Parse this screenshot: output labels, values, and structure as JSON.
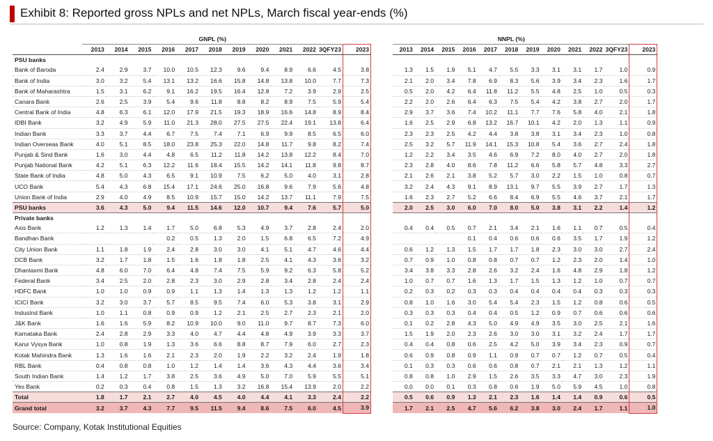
{
  "title": "Exhibit 8: Reported gross NPLs and net NPLs, March fiscal year-ends (%)",
  "source": "Source: Company, Kotak Institutional Equities",
  "headers": {
    "gnpl": "GNPL (%)",
    "nnpl": "NNPL (%)",
    "years": [
      "2013",
      "2014",
      "2015",
      "2016",
      "2017",
      "2018",
      "2019",
      "2020",
      "2021",
      "2022",
      "3QFY23",
      "2023"
    ]
  },
  "colors": {
    "accent": "#c00000",
    "highlight_border": "#d43c3c",
    "subtotal_bg": "#f7dcdc",
    "grand_bg": "#f0b7b7"
  },
  "sections": [
    {
      "label": "PSU banks",
      "rows": [
        {
          "name": "Bank of Baroda",
          "gnpl": [
            "2.4",
            "2.9",
            "3.7",
            "10.0",
            "10.5",
            "12.3",
            "9.6",
            "9.4",
            "8.9",
            "6.6",
            "4.5",
            "3.8"
          ],
          "nnpl": [
            "1.3",
            "1.5",
            "1.9",
            "5.1",
            "4.7",
            "5.5",
            "3.3",
            "3.1",
            "3.1",
            "1.7",
            "1.0",
            "0.9"
          ]
        },
        {
          "name": "Bank of India",
          "gnpl": [
            "3.0",
            "3.2",
            "5.4",
            "13.1",
            "13.2",
            "16.6",
            "15.8",
            "14.8",
            "13.8",
            "10.0",
            "7.7",
            "7.3"
          ],
          "nnpl": [
            "2.1",
            "2.0",
            "3.4",
            "7.8",
            "6.9",
            "8.3",
            "5.6",
            "3.9",
            "3.4",
            "2.3",
            "1.6",
            "1.7"
          ]
        },
        {
          "name": "Bank of Maharashtra",
          "gnpl": [
            "1.5",
            "3.1",
            "6.2",
            "9.1",
            "16.2",
            "19.5",
            "16.4",
            "12.8",
            "7.2",
            "3.9",
            "2.9",
            "2.5"
          ],
          "nnpl": [
            "0.5",
            "2.0",
            "4.2",
            "6.4",
            "11.8",
            "11.2",
            "5.5",
            "4.8",
            "2.5",
            "1.0",
            "0.5",
            "0.3"
          ]
        },
        {
          "name": "Canara Bank",
          "gnpl": [
            "2.6",
            "2.5",
            "3.9",
            "5.4",
            "9.6",
            "11.8",
            "8.8",
            "8.2",
            "8.9",
            "7.5",
            "5.9",
            "5.4"
          ],
          "nnpl": [
            "2.2",
            "2.0",
            "2.6",
            "6.4",
            "6.3",
            "7.5",
            "5.4",
            "4.2",
            "3.8",
            "2.7",
            "2.0",
            "1.7"
          ]
        },
        {
          "name": "Central Bank of India",
          "gnpl": [
            "4.8",
            "6.3",
            "6.1",
            "12.0",
            "17.9",
            "21.5",
            "19.3",
            "18.9",
            "16.6",
            "14.8",
            "8.9",
            "8.4"
          ],
          "nnpl": [
            "2.9",
            "3.7",
            "3.6",
            "7.4",
            "10.2",
            "11.1",
            "7.7",
            "7.6",
            "5.8",
            "4.0",
            "2.1",
            "1.8"
          ]
        },
        {
          "name": "IDBI Bank",
          "gnpl": [
            "3.2",
            "4.9",
            "5.9",
            "11.0",
            "21.3",
            "28.0",
            "27.5",
            "27.5",
            "22.4",
            "19.1",
            "13.8",
            "6.4"
          ],
          "nnpl": [
            "1.6",
            "2.5",
            "2.9",
            "6.8",
            "13.2",
            "16.7",
            "10.1",
            "4.2",
            "2.0",
            "1.3",
            "1.1",
            "0.9"
          ]
        },
        {
          "name": "Indian Bank",
          "gnpl": [
            "3.3",
            "3.7",
            "4.4",
            "6.7",
            "7.5",
            "7.4",
            "7.1",
            "6.9",
            "9.9",
            "8.5",
            "6.5",
            "6.0"
          ],
          "nnpl": [
            "2.3",
            "2.3",
            "2.5",
            "4.2",
            "4.4",
            "3.8",
            "3.8",
            "3.1",
            "3.4",
            "2.3",
            "1.0",
            "0.8"
          ]
        },
        {
          "name": "Indian Overseas Bank",
          "gnpl": [
            "4.0",
            "5.1",
            "8.5",
            "18.0",
            "23.8",
            "25.3",
            "22.0",
            "14.8",
            "11.7",
            "9.8",
            "8.2",
            "7.4"
          ],
          "nnpl": [
            "2.5",
            "3.2",
            "5.7",
            "11.9",
            "14.1",
            "15.3",
            "10.8",
            "5.4",
            "3.6",
            "2.7",
            "2.4",
            "1.8"
          ]
        },
        {
          "name": "Punjab & Sind Bank",
          "gnpl": [
            "1.6",
            "3.0",
            "4.4",
            "4.8",
            "6.5",
            "11.2",
            "11.8",
            "14.2",
            "13.8",
            "12.2",
            "8.4",
            "7.0"
          ],
          "nnpl": [
            "1.2",
            "2.2",
            "3.4",
            "3.5",
            "4.6",
            "6.9",
            "7.2",
            "8.0",
            "4.0",
            "2.7",
            "2.0",
            "1.8"
          ]
        },
        {
          "name": "Punjab National Bank",
          "gnpl": [
            "4.2",
            "5.1",
            "6.3",
            "12.2",
            "11.6",
            "18.4",
            "15.5",
            "14.2",
            "14.1",
            "11.8",
            "9.8",
            "8.7"
          ],
          "nnpl": [
            "2.3",
            "2.8",
            "4.0",
            "8.6",
            "7.8",
            "11.2",
            "6.6",
            "5.8",
            "5.7",
            "4.8",
            "3.3",
            "2.7"
          ]
        },
        {
          "name": "State Bank of India",
          "gnpl": [
            "4.8",
            "5.0",
            "4.3",
            "6.5",
            "9.1",
            "10.9",
            "7.5",
            "6.2",
            "5.0",
            "4.0",
            "3.1",
            "2.8"
          ],
          "nnpl": [
            "2.1",
            "2.6",
            "2.1",
            "3.8",
            "5.2",
            "5.7",
            "3.0",
            "2.2",
            "1.5",
            "1.0",
            "0.8",
            "0.7"
          ]
        },
        {
          "name": "UCO Bank",
          "gnpl": [
            "5.4",
            "4.3",
            "6.8",
            "15.4",
            "17.1",
            "24.6",
            "25.0",
            "16.8",
            "9.6",
            "7.9",
            "5.6",
            "4.8"
          ],
          "nnpl": [
            "3.2",
            "2.4",
            "4.3",
            "9.1",
            "8.9",
            "13.1",
            "9.7",
            "5.5",
            "3.9",
            "2.7",
            "1.7",
            "1.3"
          ]
        },
        {
          "name": "Union Bank of India",
          "gnpl": [
            "2.9",
            "4.0",
            "4.9",
            "8.5",
            "10.9",
            "15.7",
            "15.0",
            "14.2",
            "13.7",
            "11.1",
            "7.9",
            "7.5"
          ],
          "nnpl": [
            "1.6",
            "2.3",
            "2.7",
            "5.2",
            "6.6",
            "8.4",
            "6.9",
            "5.5",
            "4.6",
            "3.7",
            "2.1",
            "1.7"
          ]
        }
      ],
      "subtotal": {
        "name": "PSU banks",
        "gnpl": [
          "3.6",
          "4.3",
          "5.0",
          "9.4",
          "11.5",
          "14.6",
          "12.0",
          "10.7",
          "9.4",
          "7.6",
          "5.7",
          "5.0"
        ],
        "nnpl": [
          "2.0",
          "2.5",
          "3.0",
          "6.0",
          "7.0",
          "8.0",
          "5.0",
          "3.8",
          "3.1",
          "2.2",
          "1.4",
          "1.2"
        ]
      }
    },
    {
      "label": "Private banks",
      "rows": [
        {
          "name": "Axis Bank",
          "gnpl": [
            "1.2",
            "1.3",
            "1.4",
            "1.7",
            "5.0",
            "6.8",
            "5.3",
            "4.9",
            "3.7",
            "2.8",
            "2.4",
            "2.0"
          ],
          "nnpl": [
            "0.4",
            "0.4",
            "0.5",
            "0.7",
            "2.1",
            "3.4",
            "2.1",
            "1.6",
            "1.1",
            "0.7",
            "0.5",
            "0.4"
          ]
        },
        {
          "name": "Bandhan Bank",
          "gnpl": [
            "",
            "",
            "",
            "0.2",
            "0.5",
            "1.3",
            "2.0",
            "1.5",
            "6.8",
            "6.5",
            "7.2",
            "4.9"
          ],
          "nnpl": [
            "",
            "",
            "",
            "0.1",
            "0.4",
            "0.6",
            "0.6",
            "0.6",
            "3.5",
            "1.7",
            "1.9",
            "1.2"
          ]
        },
        {
          "name": "City Union Bank",
          "gnpl": [
            "1.1",
            "1.8",
            "1.9",
            "2.4",
            "2.8",
            "3.0",
            "3.0",
            "4.1",
            "5.1",
            "4.7",
            "4.6",
            "4.4"
          ],
          "nnpl": [
            "0.6",
            "1.2",
            "1.3",
            "1.5",
            "1.7",
            "1.7",
            "1.8",
            "2.3",
            "3.0",
            "3.0",
            "2.7",
            "2.4"
          ]
        },
        {
          "name": "DCB Bank",
          "gnpl": [
            "3.2",
            "1.7",
            "1.8",
            "1.5",
            "1.6",
            "1.8",
            "1.8",
            "2.5",
            "4.1",
            "4.3",
            "3.6",
            "3.2"
          ],
          "nnpl": [
            "0.7",
            "0.9",
            "1.0",
            "0.8",
            "0.8",
            "0.7",
            "0.7",
            "1.2",
            "2.3",
            "2.0",
            "1.4",
            "1.0"
          ]
        },
        {
          "name": "Dhanlaxmi Bank",
          "gnpl": [
            "4.8",
            "6.0",
            "7.0",
            "6.4",
            "4.8",
            "7.4",
            "7.5",
            "5.9",
            "9.2",
            "6.3",
            "5.8",
            "5.2"
          ],
          "nnpl": [
            "3.4",
            "3.8",
            "3.3",
            "2.8",
            "2.6",
            "3.2",
            "2.4",
            "1.6",
            "4.8",
            "2.9",
            "1.8",
            "1.2"
          ]
        },
        {
          "name": "Federal Bank",
          "gnpl": [
            "3.4",
            "2.5",
            "2.0",
            "2.8",
            "2.3",
            "3.0",
            "2.9",
            "2.8",
            "3.4",
            "2.8",
            "2.4",
            "2.4"
          ],
          "nnpl": [
            "1.0",
            "0.7",
            "0.7",
            "1.6",
            "1.3",
            "1.7",
            "1.5",
            "1.3",
            "1.2",
            "1.0",
            "0.7",
            "0.7"
          ]
        },
        {
          "name": "HDFC Bank",
          "gnpl": [
            "1.0",
            "1.0",
            "0.9",
            "0.9",
            "1.1",
            "1.3",
            "1.4",
            "1.3",
            "1.3",
            "1.2",
            "1.2",
            "1.1"
          ],
          "nnpl": [
            "0.2",
            "0.3",
            "0.2",
            "0.3",
            "0.3",
            "0.4",
            "0.4",
            "0.4",
            "0.4",
            "0.3",
            "0.3",
            "0.3"
          ]
        },
        {
          "name": "ICICI Bank",
          "gnpl": [
            "3.2",
            "3.0",
            "3.7",
            "5.7",
            "8.5",
            "9.5",
            "7.4",
            "6.0",
            "5.3",
            "3.8",
            "3.1",
            "2.9"
          ],
          "nnpl": [
            "0.8",
            "1.0",
            "1.6",
            "3.0",
            "5.4",
            "5.4",
            "2.3",
            "1.5",
            "1.2",
            "0.8",
            "0.6",
            "0.5"
          ]
        },
        {
          "name": "IndusInd Bank",
          "gnpl": [
            "1.0",
            "1.1",
            "0.8",
            "0.9",
            "0.9",
            "1.2",
            "2.1",
            "2.5",
            "2.7",
            "2.3",
            "2.1",
            "2.0"
          ],
          "nnpl": [
            "0.3",
            "0.3",
            "0.3",
            "0.4",
            "0.4",
            "0.5",
            "1.2",
            "0.9",
            "0.7",
            "0.6",
            "0.6",
            "0.6"
          ]
        },
        {
          "name": "J&K Bank",
          "gnpl": [
            "1.6",
            "1.6",
            "5.9",
            "8.2",
            "10.9",
            "10.0",
            "9.0",
            "11.0",
            "9.7",
            "8.7",
            "7.3",
            "6.0"
          ],
          "nnpl": [
            "0.1",
            "0.2",
            "2.8",
            "4.3",
            "5.0",
            "4.9",
            "4.9",
            "3.5",
            "3.0",
            "2.5",
            "2.1",
            "1.6"
          ]
        },
        {
          "name": "Karnataka Bank",
          "gnpl": [
            "2.4",
            "2.8",
            "2.9",
            "3.3",
            "4.0",
            "4.7",
            "4.4",
            "4.8",
            "4.9",
            "3.9",
            "3.3",
            "3.7"
          ],
          "nnpl": [
            "1.5",
            "1.9",
            "2.0",
            "2.3",
            "2.6",
            "3.0",
            "3.0",
            "3.1",
            "3.2",
            "2.4",
            "1.7",
            "1.7"
          ]
        },
        {
          "name": "Karur Vysya Bank",
          "gnpl": [
            "1.0",
            "0.8",
            "1.9",
            "1.3",
            "3.6",
            "6.6",
            "8.8",
            "8.7",
            "7.9",
            "6.0",
            "2.7",
            "2.3"
          ],
          "nnpl": [
            "0.4",
            "0.4",
            "0.8",
            "0.6",
            "2.5",
            "4.2",
            "5.0",
            "3.9",
            "3.4",
            "2.3",
            "0.9",
            "0.7"
          ]
        },
        {
          "name": "Kotak Mahindra Bank",
          "gnpl": [
            "1.3",
            "1.6",
            "1.6",
            "2.1",
            "2.3",
            "2.0",
            "1.9",
            "2.2",
            "3.2",
            "2.4",
            "1.9",
            "1.8"
          ],
          "nnpl": [
            "0.6",
            "0.9",
            "0.8",
            "0.9",
            "1.1",
            "0.9",
            "0.7",
            "0.7",
            "1.2",
            "0.7",
            "0.5",
            "0.4"
          ]
        },
        {
          "name": "RBL Bank",
          "gnpl": [
            "0.4",
            "0.8",
            "0.8",
            "1.0",
            "1.2",
            "1.4",
            "1.4",
            "3.6",
            "4.3",
            "4.4",
            "3.6",
            "3.4"
          ],
          "nnpl": [
            "0.1",
            "0.3",
            "0.3",
            "0.6",
            "0.6",
            "0.8",
            "0.7",
            "2.1",
            "2.1",
            "1.3",
            "1.2",
            "1.1"
          ]
        },
        {
          "name": "South Indian Bank",
          "gnpl": [
            "1.4",
            "1.2",
            "1.7",
            "3.8",
            "2.5",
            "3.6",
            "4.9",
            "5.0",
            "7.0",
            "5.9",
            "5.5",
            "5.1"
          ],
          "nnpl": [
            "0.8",
            "0.8",
            "1.0",
            "2.9",
            "1.5",
            "2.6",
            "3.5",
            "3.3",
            "4.7",
            "3.0",
            "2.3",
            "1.9"
          ]
        },
        {
          "name": "Yes Bank",
          "gnpl": [
            "0.2",
            "0.3",
            "0.4",
            "0.8",
            "1.5",
            "1.3",
            "3.2",
            "16.8",
            "15.4",
            "13.9",
            "2.0",
            "2.2"
          ],
          "nnpl": [
            "0.0",
            "0.0",
            "0.1",
            "0.3",
            "0.8",
            "0.6",
            "1.9",
            "5.0",
            "5.9",
            "4.5",
            "1.0",
            "0.8"
          ]
        }
      ],
      "subtotal": {
        "name": "Total",
        "gnpl": [
          "1.8",
          "1.7",
          "2.1",
          "2.7",
          "4.0",
          "4.5",
          "4.0",
          "4.4",
          "4.1",
          "3.3",
          "2.4",
          "2.2"
        ],
        "nnpl": [
          "0.5",
          "0.6",
          "0.9",
          "1.3",
          "2.1",
          "2.3",
          "1.6",
          "1.4",
          "1.4",
          "0.9",
          "0.6",
          "0.5"
        ]
      }
    }
  ],
  "grand_total": {
    "name": "Grand total",
    "gnpl": [
      "3.2",
      "3.7",
      "4.3",
      "7.7",
      "9.5",
      "11.5",
      "9.4",
      "8.6",
      "7.5",
      "6.0",
      "4.5",
      "3.9"
    ],
    "nnpl": [
      "1.7",
      "2.1",
      "2.5",
      "4.7",
      "5.6",
      "6.2",
      "3.8",
      "3.0",
      "2.4",
      "1.7",
      "1.1",
      "1.0"
    ]
  }
}
